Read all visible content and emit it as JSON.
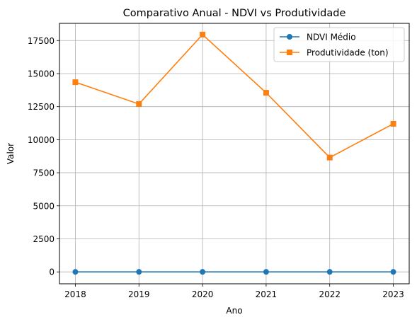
{
  "chart_data": {
    "type": "line",
    "title": "Comparativo Anual - NDVI vs Produtividade",
    "xlabel": "Ano",
    "ylabel": "Valor",
    "x": [
      "2018",
      "2019",
      "2020",
      "2021",
      "2022",
      "2023"
    ],
    "xlim": [
      2017.75,
      2023.25
    ],
    "ylim": [
      -900,
      18800
    ],
    "yticks": [
      0,
      2500,
      5000,
      7500,
      10000,
      12500,
      15000,
      17500
    ],
    "ytick_labels": [
      "0",
      "2500",
      "5000",
      "7500",
      "10000",
      "12500",
      "15000",
      "17500"
    ],
    "grid": true,
    "legend_position": "top-right",
    "series": [
      {
        "name": "NDVI Médio",
        "color": "#1f77b4",
        "marker": "circle",
        "values": [
          0.6,
          0.6,
          0.6,
          0.6,
          0.6,
          0.6
        ]
      },
      {
        "name": "Produtividade (ton)",
        "color": "#ff7f0e",
        "marker": "square",
        "values": [
          14350,
          12700,
          17950,
          13550,
          8650,
          11200
        ]
      }
    ]
  }
}
